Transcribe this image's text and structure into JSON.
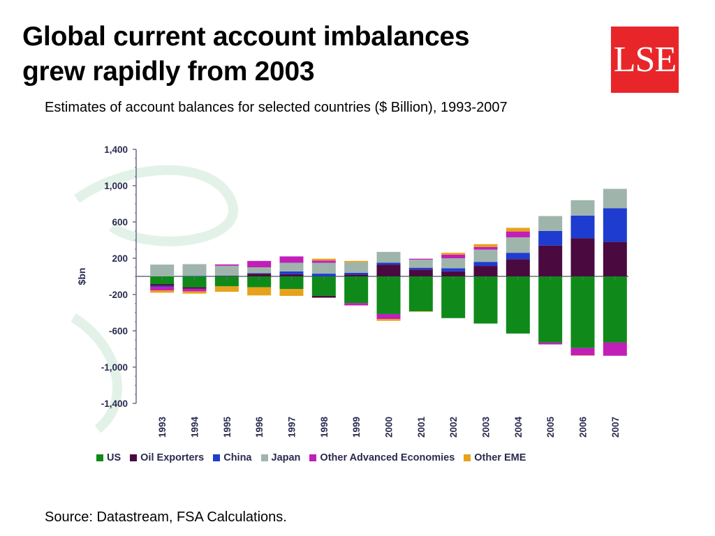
{
  "slide": {
    "title_line1": "Global current account imbalances",
    "title_line2": "grew rapidly from 2003",
    "subtitle": "Estimates of account balances for selected countries ($ Billion), 1993-2007",
    "source": "Source: Datastream, FSA Calculations.",
    "logo_text": "LSE",
    "logo_color": "#e8262a"
  },
  "chart_data": {
    "type": "bar",
    "stacked": true,
    "ylabel": "$bn",
    "ylim": [
      -1400,
      1400
    ],
    "yticks": [
      1400,
      1000,
      600,
      200,
      -200,
      -600,
      -1000,
      -1400
    ],
    "ytick_labels": [
      "1,400",
      "1,000",
      "600",
      "200",
      "-200",
      "-600",
      "-1,000",
      "-1,400"
    ],
    "categories": [
      "1993",
      "1994",
      "1995",
      "1996",
      "1997",
      "1998",
      "1999",
      "2000",
      "2001",
      "2002",
      "2003",
      "2004",
      "2005",
      "2006",
      "2007"
    ],
    "legend_position": "bottom",
    "series": [
      {
        "name": "US",
        "color": "#0f8a1a",
        "values": [
          -85,
          -120,
          -110,
          -120,
          -140,
          -215,
          -295,
          -415,
          -385,
          -460,
          -520,
          -630,
          -730,
          -790,
          -730
        ]
      },
      {
        "name": "Oil Exporters",
        "color": "#4a0a40",
        "values": [
          -20,
          -15,
          5,
          30,
          25,
          -20,
          20,
          130,
          75,
          55,
          115,
          190,
          340,
          420,
          380
        ]
      },
      {
        "name": "China",
        "color": "#1e3ccf",
        "values": [
          -10,
          5,
          2,
          5,
          30,
          30,
          20,
          20,
          20,
          35,
          45,
          70,
          160,
          250,
          370
        ]
      },
      {
        "name": "Japan",
        "color": "#9fb5ac",
        "values": [
          130,
          130,
          110,
          65,
          95,
          120,
          115,
          120,
          90,
          110,
          135,
          170,
          165,
          170,
          215
        ]
      },
      {
        "name": "Other Advanced Economies",
        "color": "#c21fb8",
        "values": [
          -40,
          -30,
          15,
          70,
          70,
          25,
          -25,
          -55,
          10,
          40,
          30,
          65,
          -20,
          -80,
          -145
        ]
      },
      {
        "name": "Other EME",
        "color": "#e8a21a",
        "values": [
          -25,
          -25,
          -60,
          -90,
          -75,
          20,
          15,
          -20,
          -5,
          20,
          30,
          40,
          0,
          -5,
          0
        ]
      }
    ]
  }
}
